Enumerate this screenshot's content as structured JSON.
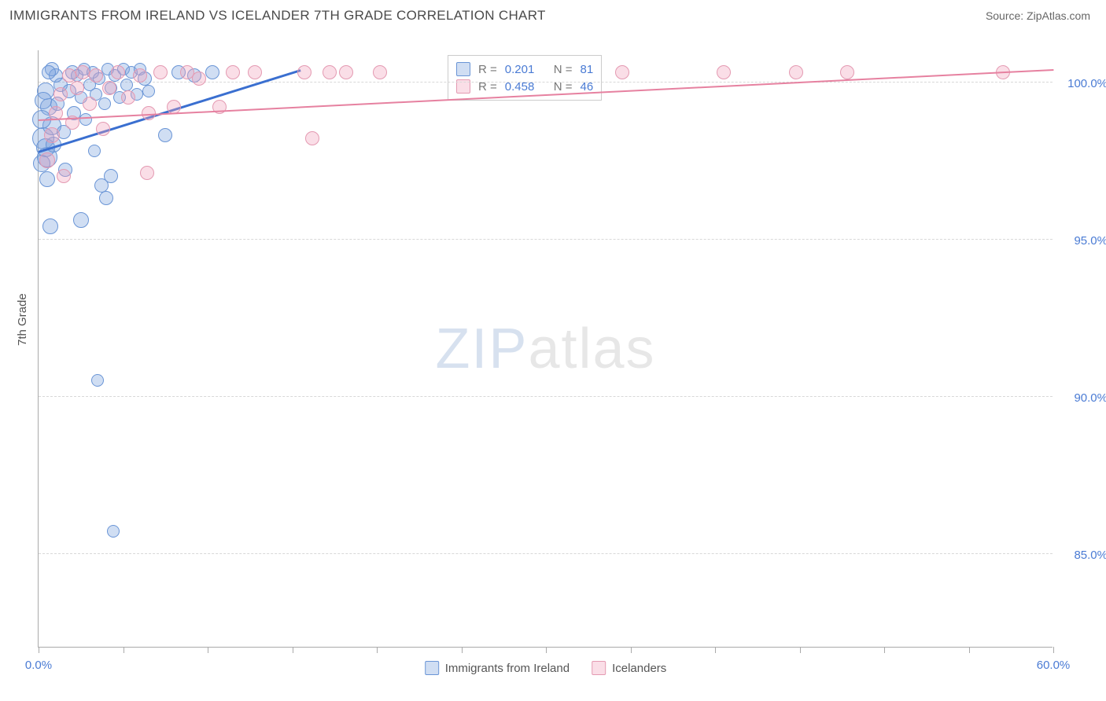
{
  "header": {
    "title": "IMMIGRANTS FROM IRELAND VS ICELANDER 7TH GRADE CORRELATION CHART",
    "source": "Source: ZipAtlas.com"
  },
  "watermark": {
    "part1": "ZIP",
    "part2": "atlas"
  },
  "y_axis": {
    "title": "7th Grade"
  },
  "chart": {
    "type": "scatter",
    "xlim": [
      0,
      60
    ],
    "ylim": [
      82,
      101
    ],
    "x_ticks": [
      0,
      5,
      10,
      15,
      20,
      25,
      30,
      35,
      40,
      45,
      50,
      55,
      60
    ],
    "x_tick_labels": {
      "0": "0.0%",
      "60": "60.0%"
    },
    "y_gridlines": [
      85,
      90,
      95,
      100
    ],
    "y_tick_labels": {
      "85": "85.0%",
      "90": "90.0%",
      "95": "95.0%",
      "100": "100.0%"
    },
    "background_color": "#ffffff",
    "grid_color": "#d8d8d8",
    "axis_color": "#aaaaaa",
    "series": [
      {
        "name": "Immigrants from Ireland",
        "fill": "rgba(120,160,220,0.35)",
        "stroke": "#6a95d6",
        "trend_color": "#3a6fd0",
        "trend_width": 3,
        "trend": {
          "x1": 0,
          "y1": 97.8,
          "x2": 15.5,
          "y2": 100.4
        },
        "R": "0.201",
        "N": "81",
        "radius_default": 9,
        "points": [
          {
            "x": 0.3,
            "y": 98.2,
            "r": 14
          },
          {
            "x": 0.5,
            "y": 97.6,
            "r": 13
          },
          {
            "x": 0.4,
            "y": 97.9,
            "r": 12
          },
          {
            "x": 0.8,
            "y": 98.6,
            "r": 12
          },
          {
            "x": 0.6,
            "y": 99.2,
            "r": 11
          },
          {
            "x": 0.4,
            "y": 99.7,
            "r": 11
          },
          {
            "x": 0.2,
            "y": 97.4,
            "r": 11
          },
          {
            "x": 0.5,
            "y": 96.9,
            "r": 10
          },
          {
            "x": 0.7,
            "y": 95.4,
            "r": 10
          },
          {
            "x": 0.9,
            "y": 98.0,
            "r": 10
          },
          {
            "x": 1.1,
            "y": 99.3,
            "r": 9
          },
          {
            "x": 1.3,
            "y": 99.9,
            "r": 9
          },
          {
            "x": 1.0,
            "y": 100.2,
            "r": 9
          },
          {
            "x": 0.8,
            "y": 100.4,
            "r": 9
          },
          {
            "x": 1.5,
            "y": 98.4,
            "r": 9
          },
          {
            "x": 1.6,
            "y": 97.2,
            "r": 9
          },
          {
            "x": 1.8,
            "y": 99.7,
            "r": 9
          },
          {
            "x": 2.0,
            "y": 100.3,
            "r": 9
          },
          {
            "x": 2.1,
            "y": 99.0,
            "r": 9
          },
          {
            "x": 2.3,
            "y": 100.2,
            "r": 8
          },
          {
            "x": 2.5,
            "y": 99.5,
            "r": 8
          },
          {
            "x": 2.7,
            "y": 100.4,
            "r": 8
          },
          {
            "x": 2.8,
            "y": 98.8,
            "r": 8
          },
          {
            "x": 3.0,
            "y": 99.9,
            "r": 8
          },
          {
            "x": 3.2,
            "y": 100.3,
            "r": 8
          },
          {
            "x": 3.3,
            "y": 97.8,
            "r": 8
          },
          {
            "x": 3.4,
            "y": 99.6,
            "r": 8
          },
          {
            "x": 3.6,
            "y": 100.1,
            "r": 8
          },
          {
            "x": 3.7,
            "y": 96.7,
            "r": 9
          },
          {
            "x": 3.9,
            "y": 99.3,
            "r": 8
          },
          {
            "x": 4.1,
            "y": 100.4,
            "r": 8
          },
          {
            "x": 4.3,
            "y": 99.8,
            "r": 8
          },
          {
            "x": 4.5,
            "y": 100.2,
            "r": 8
          },
          {
            "x": 4.8,
            "y": 99.5,
            "r": 8
          },
          {
            "x": 5.0,
            "y": 100.4,
            "r": 8
          },
          {
            "x": 5.2,
            "y": 99.9,
            "r": 8
          },
          {
            "x": 5.5,
            "y": 100.3,
            "r": 8
          },
          {
            "x": 5.8,
            "y": 99.6,
            "r": 8
          },
          {
            "x": 6.0,
            "y": 100.4,
            "r": 8
          },
          {
            "x": 6.3,
            "y": 100.1,
            "r": 9
          },
          {
            "x": 6.5,
            "y": 99.7,
            "r": 8
          },
          {
            "x": 4.0,
            "y": 96.3,
            "r": 9
          },
          {
            "x": 4.3,
            "y": 97.0,
            "r": 9
          },
          {
            "x": 7.5,
            "y": 98.3,
            "r": 9
          },
          {
            "x": 8.3,
            "y": 100.3,
            "r": 9
          },
          {
            "x": 9.2,
            "y": 100.2,
            "r": 9
          },
          {
            "x": 10.3,
            "y": 100.3,
            "r": 9
          },
          {
            "x": 2.5,
            "y": 95.6,
            "r": 10
          },
          {
            "x": 3.5,
            "y": 90.5,
            "r": 8
          },
          {
            "x": 4.4,
            "y": 85.7,
            "r": 8
          },
          {
            "x": 0.6,
            "y": 100.3,
            "r": 9
          },
          {
            "x": 0.2,
            "y": 98.8,
            "r": 12
          },
          {
            "x": 0.3,
            "y": 99.4,
            "r": 11
          }
        ]
      },
      {
        "name": "Icelanders",
        "fill": "rgba(240,160,185,0.35)",
        "stroke": "#e49ab2",
        "trend_color": "#e681a0",
        "trend_width": 2,
        "trend": {
          "x1": 0,
          "y1": 98.8,
          "x2": 60,
          "y2": 100.4
        },
        "R": "0.458",
        "N": "46",
        "radius_default": 9,
        "points": [
          {
            "x": 0.5,
            "y": 97.5,
            "r": 10
          },
          {
            "x": 0.8,
            "y": 98.3,
            "r": 10
          },
          {
            "x": 1.0,
            "y": 99.0,
            "r": 9
          },
          {
            "x": 1.3,
            "y": 99.6,
            "r": 9
          },
          {
            "x": 1.5,
            "y": 97.0,
            "r": 9
          },
          {
            "x": 1.8,
            "y": 100.2,
            "r": 9
          },
          {
            "x": 2.0,
            "y": 98.7,
            "r": 9
          },
          {
            "x": 2.3,
            "y": 99.8,
            "r": 9
          },
          {
            "x": 2.6,
            "y": 100.3,
            "r": 9
          },
          {
            "x": 3.0,
            "y": 99.3,
            "r": 9
          },
          {
            "x": 3.4,
            "y": 100.2,
            "r": 9
          },
          {
            "x": 3.8,
            "y": 98.5,
            "r": 9
          },
          {
            "x": 4.2,
            "y": 99.8,
            "r": 9
          },
          {
            "x": 4.7,
            "y": 100.3,
            "r": 9
          },
          {
            "x": 5.3,
            "y": 99.5,
            "r": 9
          },
          {
            "x": 6.0,
            "y": 100.2,
            "r": 9
          },
          {
            "x": 6.5,
            "y": 99.0,
            "r": 9
          },
          {
            "x": 6.4,
            "y": 97.1,
            "r": 9
          },
          {
            "x": 7.2,
            "y": 100.3,
            "r": 9
          },
          {
            "x": 8.0,
            "y": 99.2,
            "r": 9
          },
          {
            "x": 8.8,
            "y": 100.3,
            "r": 9
          },
          {
            "x": 9.5,
            "y": 100.1,
            "r": 9
          },
          {
            "x": 10.7,
            "y": 99.2,
            "r": 9
          },
          {
            "x": 11.5,
            "y": 100.3,
            "r": 9
          },
          {
            "x": 12.8,
            "y": 100.3,
            "r": 9
          },
          {
            "x": 15.7,
            "y": 100.3,
            "r": 9
          },
          {
            "x": 16.2,
            "y": 98.2,
            "r": 9
          },
          {
            "x": 17.2,
            "y": 100.3,
            "r": 9
          },
          {
            "x": 18.2,
            "y": 100.3,
            "r": 9
          },
          {
            "x": 20.2,
            "y": 100.3,
            "r": 9
          },
          {
            "x": 34.5,
            "y": 100.3,
            "r": 9
          },
          {
            "x": 40.5,
            "y": 100.3,
            "r": 9
          },
          {
            "x": 44.8,
            "y": 100.3,
            "r": 9
          },
          {
            "x": 47.8,
            "y": 100.3,
            "r": 9
          },
          {
            "x": 57.0,
            "y": 100.3,
            "r": 9
          }
        ]
      }
    ]
  },
  "legend_top": {
    "r_label": "R =",
    "n_label": "N ="
  },
  "legend_bottom": {
    "series1": "Immigrants from Ireland",
    "series2": "Icelanders"
  }
}
